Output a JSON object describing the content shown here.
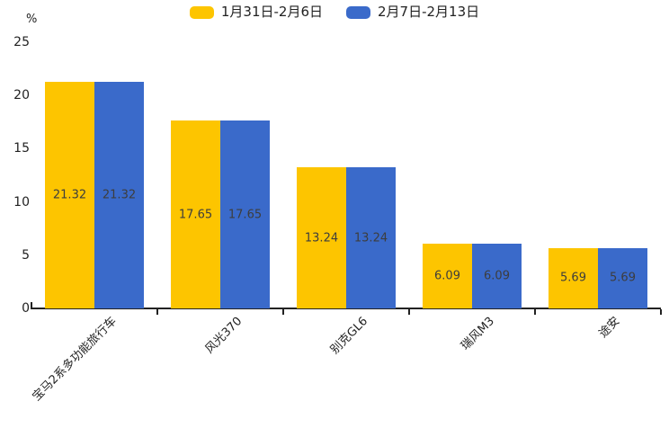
{
  "chart_data": {
    "type": "bar",
    "title": "",
    "categories": [
      "宝马2系多功能旅行车",
      "风光370",
      "别克GL6",
      "瑞风M3",
      "途安"
    ],
    "series": [
      {
        "name": "1月31日-2月6日",
        "color": "#FDC500",
        "values": [
          21.32,
          17.65,
          13.24,
          6.09,
          5.69
        ]
      },
      {
        "name": "2月7日-2月13日",
        "color": "#3A6ACA",
        "values": [
          21.32,
          17.65,
          13.24,
          6.09,
          5.69
        ]
      }
    ],
    "xlabel": "",
    "ylabel": "%",
    "ylim": [
      0,
      25
    ],
    "yticks": [
      0,
      5,
      10,
      15,
      20,
      25
    ],
    "grid": false,
    "legend_position": "top",
    "value_labels_decimals": 2,
    "value_label_color": "#3d3d3d",
    "axis_color": "#222222",
    "category_label_rotation_deg": -45
  }
}
